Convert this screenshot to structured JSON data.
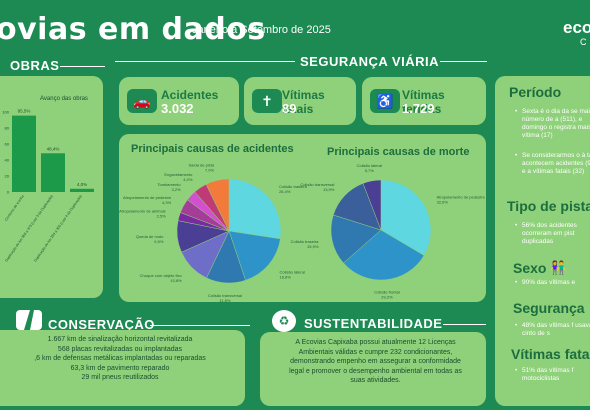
{
  "header": {
    "title": "ovias em dados",
    "subtitle": "Janeiro a Setembro de 2025",
    "logo": "eco",
    "logo_sub": "C"
  },
  "obras": {
    "heading": "OBRAS",
    "chart_title": "Avanço das obras",
    "y_ticks": [
      "100",
      "80",
      "60",
      "40",
      "20",
      "0"
    ],
    "bars": [
      {
        "label": "Contorno de Iconha",
        "value": 95.5,
        "value_label": "95,5%"
      },
      {
        "label": "Duplicação do km 358 a 373 (Lote 3 da Duplicação)",
        "value": 48.4,
        "value_label": "48,4%"
      },
      {
        "label": "Duplicação do km 254 a 309 (Lote 4 da Duplicação)",
        "value": 4.0,
        "value_label": "4,0%"
      }
    ]
  },
  "seguranca": {
    "heading": "SEGURANÇA VIÁRIA",
    "kpis": [
      {
        "label": "Acidentes",
        "value": "3.032",
        "icon": "car-crash-icon"
      },
      {
        "label": "Vítimas fatais",
        "value": "89",
        "icon": "tombstone-icon"
      },
      {
        "label": "Vítimas feridas",
        "value": "1.729",
        "icon": "injured-person-icon"
      }
    ]
  },
  "chart_data": [
    {
      "type": "pie",
      "title": "Principais causas de acidentes",
      "labels": [
        "Colisão traseira",
        "Colisão lateral",
        "Colisão transversal",
        "Choque com objeto fixo",
        "Queda de moto",
        "Atropelamento de animais",
        "Atropelamento de pedestre",
        "Tombamento",
        "Engavetamento",
        "Saída de pista"
      ],
      "values": [
        26.4,
        16.8,
        11.8,
        10.8,
        9.5,
        2.5,
        4.3,
        3.2,
        4.0,
        7.0
      ],
      "value_labels": [
        "26,4%",
        "16,8%",
        "11,8%",
        "10,8%",
        "9,5%",
        "2,5%",
        "4,3%",
        "3,2%",
        "4,0%",
        "7,0%"
      ],
      "colors": [
        "#5fd7e0",
        "#2e93c8",
        "#2f78b0",
        "#6e6ec8",
        "#4a3f95",
        "#7a2aa0",
        "#a33d98",
        "#d24fcf",
        "#c03a78",
        "#f27a3a"
      ]
    },
    {
      "type": "pie",
      "title": "Principais causas de morte",
      "labels": [
        "Atropelamento de pedestre",
        "Colisão frontal",
        "Colisão traseira",
        "Colisão transversal",
        "Colisão lateral"
      ],
      "values": [
        32.6,
        29.2,
        15.9,
        13.9,
        5.7
      ],
      "value_labels": [
        "32,6%",
        "29,2%",
        "15,9%",
        "13,9%",
        "5,7%"
      ],
      "colors": [
        "#5fd7e0",
        "#2e93c8",
        "#2f78b0",
        "#3a5f9a",
        "#4a3f95"
      ]
    }
  ],
  "periodo": {
    "heading": "Período",
    "bullets": [
      "Sexta é o dia da se maior número de a (511), e domingo o registra mais vítima (17)",
      "Se considerarmos o à tarde acontecem acidentes (992) e a vítimas fatais (32)"
    ]
  },
  "tipo_pista": {
    "heading": "Tipo de pista",
    "bullets": [
      "56% dos acidentes ocorreram em pist duplicadas"
    ]
  },
  "sexo": {
    "heading": "Sexo",
    "bullets": [
      "90% das vítimas e"
    ]
  },
  "seguranca_cinto": {
    "heading": "Segurança",
    "bullets": [
      "48% das vítimas f usavam cinto de s"
    ]
  },
  "vitimas_fatais": {
    "heading": "Vítimas fatai",
    "bullets": [
      "51% das vítimas f motociclistas"
    ]
  },
  "conservacao": {
    "heading": "CONSERVAÇÃO",
    "lines": [
      "1.667 km de sinalização horizontal revitalizada",
      "568 placas revitalizadas ou implantadas",
      ",6 km de defensas metálicas implantadas ou reparadas",
      "63,3 km de pavimento reparado",
      "29 mil pneus reutilizados"
    ]
  },
  "sustentabilidade": {
    "heading": "SUSTENTABILIDADE",
    "lines": [
      "A Ecovias Capixaba possui atualmente 12 Licenças",
      "Ambientais válidas e cumpre 232 condicionantes,",
      "demonstrando empenho em assegurar a conformidade",
      "legal e promover  o desempenho ambiental em todas as",
      "suas atividades."
    ]
  }
}
